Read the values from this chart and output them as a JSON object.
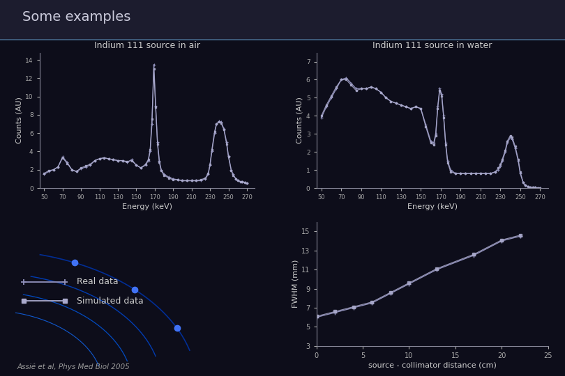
{
  "bg_color": "#0d0d1a",
  "title_bar_color": "#1a1a2e",
  "title": "Some examples",
  "title_color": "#ccccdd",
  "title_fontsize": 14,
  "air_title": "Indium 111 source in air",
  "air_xlabel": "Energy (keV)",
  "air_ylabel": "Counts (AU)",
  "air_yticks": [
    0,
    2,
    4,
    6,
    8,
    10,
    12,
    14
  ],
  "air_xticks": [
    50,
    70,
    90,
    110,
    130,
    150,
    170,
    190,
    210,
    230,
    250,
    270
  ],
  "water_title": "Indium 111 source in water",
  "water_xlabel": "Energy (keV)",
  "water_ylabel": "Counts (AU)",
  "water_yticks": [
    0,
    1,
    2,
    3,
    4,
    5,
    6,
    7
  ],
  "water_xticks": [
    50,
    70,
    90,
    110,
    130,
    150,
    170,
    190,
    210,
    230,
    250,
    270
  ],
  "fwhm_xlabel": "source - collimator distance (cm)",
  "fwhm_ylabel": "FWHM (mm)",
  "fwhm_yticks": [
    3,
    5,
    7,
    9,
    11,
    13,
    15
  ],
  "fwhm_xticks": [
    0,
    5,
    10,
    15,
    20,
    25
  ],
  "real_color": "#9090bb",
  "sim_color": "#aaaacc",
  "air_real_x": [
    50,
    55,
    60,
    65,
    70,
    75,
    80,
    85,
    90,
    95,
    100,
    105,
    110,
    115,
    120,
    125,
    130,
    135,
    140,
    145,
    150,
    155,
    160,
    163,
    165,
    167,
    169,
    171,
    173,
    175,
    177,
    180,
    185,
    190,
    195,
    200,
    205,
    210,
    215,
    220,
    225,
    228,
    230,
    232,
    235,
    237,
    240,
    242,
    245,
    248,
    250,
    253,
    255,
    258,
    260,
    263,
    265,
    268,
    270
  ],
  "air_real_y": [
    1.5,
    1.8,
    2.0,
    2.3,
    3.4,
    2.8,
    2.0,
    1.8,
    2.1,
    2.3,
    2.5,
    3.0,
    3.2,
    3.3,
    3.2,
    3.1,
    3.0,
    3.0,
    2.8,
    3.1,
    2.5,
    2.2,
    2.5,
    3.0,
    4.0,
    7.0,
    13.5,
    9.0,
    5.0,
    3.0,
    2.0,
    1.5,
    1.2,
    1.0,
    0.9,
    0.8,
    0.8,
    0.8,
    0.8,
    0.8,
    1.0,
    1.5,
    2.5,
    4.0,
    6.0,
    7.0,
    7.3,
    7.2,
    6.5,
    5.0,
    3.5,
    2.0,
    1.5,
    1.0,
    0.8,
    0.7,
    0.7,
    0.6,
    0.5
  ],
  "air_sim_x": [
    50,
    55,
    60,
    65,
    70,
    75,
    80,
    85,
    90,
    95,
    100,
    105,
    110,
    115,
    120,
    125,
    130,
    135,
    140,
    145,
    150,
    155,
    160,
    163,
    165,
    167,
    169,
    171,
    173,
    175,
    177,
    180,
    185,
    190,
    195,
    200,
    205,
    210,
    215,
    220,
    225,
    228,
    230,
    232,
    235,
    237,
    240,
    242,
    245,
    248,
    250,
    253,
    255,
    258,
    260,
    263,
    265,
    268,
    270
  ],
  "air_sim_y": [
    1.6,
    1.9,
    2.0,
    2.3,
    3.3,
    2.7,
    2.0,
    1.8,
    2.2,
    2.4,
    2.6,
    3.0,
    3.2,
    3.3,
    3.2,
    3.1,
    3.0,
    3.0,
    2.9,
    3.0,
    2.5,
    2.2,
    2.6,
    3.1,
    4.2,
    7.5,
    13.0,
    8.8,
    4.8,
    2.8,
    1.9,
    1.4,
    1.1,
    0.9,
    0.9,
    0.8,
    0.8,
    0.8,
    0.8,
    0.9,
    1.1,
    1.6,
    2.6,
    4.2,
    6.2,
    7.0,
    7.2,
    7.1,
    6.4,
    4.8,
    3.4,
    1.9,
    1.4,
    1.0,
    0.8,
    0.7,
    0.7,
    0.6,
    0.5
  ],
  "water_real_x": [
    50,
    55,
    60,
    65,
    70,
    75,
    80,
    85,
    90,
    95,
    100,
    105,
    110,
    115,
    120,
    125,
    130,
    135,
    140,
    145,
    150,
    155,
    160,
    163,
    165,
    167,
    169,
    171,
    173,
    175,
    177,
    180,
    185,
    190,
    195,
    200,
    205,
    210,
    215,
    220,
    225,
    228,
    230,
    232,
    235,
    237,
    240,
    242,
    245,
    248,
    250,
    253,
    255,
    258,
    260,
    263,
    265,
    268,
    270
  ],
  "water_real_y": [
    3.9,
    4.5,
    5.0,
    5.5,
    6.0,
    6.1,
    5.8,
    5.5,
    5.5,
    5.5,
    5.6,
    5.5,
    5.3,
    5.0,
    4.8,
    4.7,
    4.6,
    4.5,
    4.4,
    4.5,
    4.4,
    3.5,
    2.6,
    2.5,
    3.0,
    4.5,
    5.5,
    5.2,
    4.0,
    2.5,
    1.5,
    1.0,
    0.8,
    0.8,
    0.8,
    0.8,
    0.8,
    0.8,
    0.8,
    0.8,
    0.9,
    1.0,
    1.2,
    1.5,
    2.0,
    2.5,
    2.8,
    2.7,
    2.2,
    1.5,
    0.8,
    0.3,
    0.15,
    0.08,
    0.05,
    0.03,
    0.02,
    0.01,
    0.01
  ],
  "water_sim_x": [
    50,
    55,
    60,
    65,
    70,
    75,
    80,
    85,
    90,
    95,
    100,
    105,
    110,
    115,
    120,
    125,
    130,
    135,
    140,
    145,
    150,
    155,
    160,
    163,
    165,
    167,
    169,
    171,
    173,
    175,
    177,
    180,
    185,
    190,
    195,
    200,
    205,
    210,
    215,
    220,
    225,
    228,
    230,
    232,
    235,
    237,
    240,
    242,
    245,
    248,
    250,
    253,
    255,
    258,
    260,
    263,
    265,
    268,
    270
  ],
  "water_sim_y": [
    4.0,
    4.6,
    5.1,
    5.6,
    6.0,
    6.0,
    5.7,
    5.4,
    5.5,
    5.5,
    5.6,
    5.5,
    5.3,
    5.0,
    4.8,
    4.7,
    4.6,
    4.5,
    4.4,
    4.5,
    4.4,
    3.4,
    2.5,
    2.4,
    2.9,
    4.4,
    5.4,
    5.1,
    3.9,
    2.4,
    1.4,
    0.9,
    0.8,
    0.8,
    0.8,
    0.8,
    0.8,
    0.8,
    0.8,
    0.8,
    0.9,
    1.1,
    1.3,
    1.6,
    2.1,
    2.6,
    2.9,
    2.8,
    2.3,
    1.6,
    0.9,
    0.3,
    0.15,
    0.08,
    0.05,
    0.03,
    0.02,
    0.01,
    0.01
  ],
  "fwhm_real_x": [
    0,
    2,
    4,
    6,
    8,
    10,
    13,
    17,
    20,
    22
  ],
  "fwhm_real_y": [
    6.0,
    6.5,
    7.0,
    7.5,
    8.5,
    9.5,
    11.0,
    12.5,
    14.0,
    14.5
  ],
  "fwhm_sim_x": [
    0,
    2,
    4,
    6,
    8,
    10,
    13,
    17,
    20,
    22
  ],
  "fwhm_sim_y": [
    6.1,
    6.6,
    7.1,
    7.6,
    8.6,
    9.6,
    11.1,
    12.6,
    14.1,
    14.6
  ],
  "legend_real": "Real data",
  "legend_sim": "Simulated data",
  "citation": "Assié et al, Phys Med Biol 2005",
  "axis_color": "#888899",
  "tick_color": "#aaaaaa",
  "label_color": "#cccccc",
  "text_color": "#cccccc",
  "spine_color": "#888899"
}
